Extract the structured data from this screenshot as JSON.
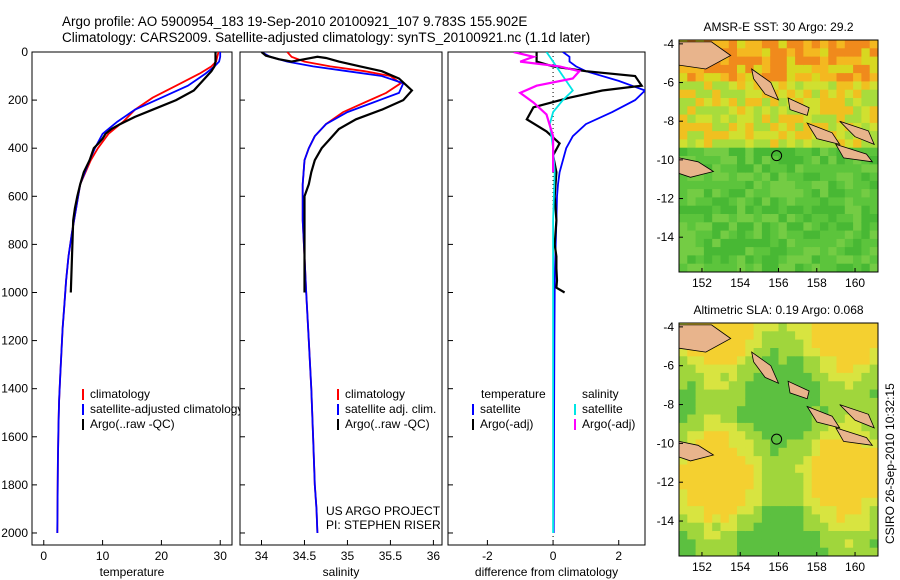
{
  "header": {
    "line1": "Argo profile: AO 5900954_183 19-Sep-2010 20100921_107 9.783S 155.902E",
    "line2": "Climatology: CARS2009. Satellite-adjusted climatology: synTS_20100921.nc (1.1d later)"
  },
  "side_text": "CSIRO 26-Sep-2010 10:32:15",
  "credits": [
    "US ARGO PROJECT",
    "PI: STEPHEN RISER"
  ],
  "colors": {
    "climatology": "#ff0000",
    "satellite": "#0000ff",
    "argo": "#000000",
    "sat_diff_sal": "#00e5e5",
    "argo_diff_sal": "#ff00ff",
    "land": "#e8b48c"
  },
  "chart_data": [
    {
      "id": "temperature",
      "type": "line",
      "xlabel": "temperature",
      "ylabel": "",
      "xlim": [
        -2,
        32
      ],
      "ylim": [
        2050,
        0
      ],
      "xticks": [
        0,
        10,
        20,
        30
      ],
      "yticks": [
        0,
        200,
        400,
        600,
        800,
        1000,
        1200,
        1400,
        1600,
        1800,
        2000
      ],
      "legend": [
        "climatology",
        "satellite-adjusted climatology",
        "Argo(..raw -QC)"
      ],
      "series": [
        {
          "name": "climatology",
          "x": [
            29.7,
            29.5,
            29.3,
            28.5,
            26.5,
            22.5,
            18.5,
            15.5,
            13.5,
            11.0,
            9.2,
            8.0,
            6.2,
            5.5,
            4.8,
            4.2,
            3.8,
            3.5,
            3.2,
            3.0,
            2.8,
            2.6,
            2.5,
            2.4,
            2.35,
            2.3
          ],
          "y": [
            0,
            20,
            40,
            60,
            90,
            140,
            190,
            240,
            290,
            340,
            400,
            450,
            550,
            650,
            750,
            850,
            950,
            1050,
            1150,
            1250,
            1350,
            1450,
            1550,
            1700,
            1850,
            2000
          ]
        },
        {
          "name": "satellite-adjusted climatology",
          "x": [
            30.0,
            30.0,
            29.8,
            29.0,
            27.5,
            24.5,
            20.0,
            15.5,
            12.5,
            10.0,
            8.7,
            7.8,
            6.2,
            5.5,
            4.8,
            4.2,
            3.8,
            3.5,
            3.2,
            3.0,
            2.8,
            2.6,
            2.5,
            2.4,
            2.35,
            2.3
          ],
          "y": [
            0,
            20,
            40,
            60,
            90,
            140,
            190,
            240,
            290,
            340,
            400,
            450,
            550,
            650,
            750,
            850,
            950,
            1050,
            1150,
            1250,
            1350,
            1450,
            1550,
            1700,
            1850,
            2000
          ]
        },
        {
          "name": "Argo(..raw -QC)",
          "x": [
            29.2,
            29.2,
            29.2,
            29.0,
            28.5,
            27.0,
            25.5,
            22.5,
            18.5,
            15.5,
            13.0,
            11.5,
            10.5,
            10.0,
            9.3,
            8.5,
            7.8,
            6.8,
            6.2,
            5.7,
            5.3,
            5.0,
            4.6
          ],
          "y": [
            0,
            20,
            40,
            60,
            80,
            120,
            160,
            200,
            240,
            270,
            300,
            320,
            340,
            360,
            380,
            400,
            450,
            500,
            550,
            600,
            650,
            700,
            1000
          ]
        }
      ]
    },
    {
      "id": "salinity",
      "type": "line",
      "xlabel": "salinity",
      "xlim": [
        33.75,
        36.1
      ],
      "ylim": [
        2050,
        0
      ],
      "xticks": [
        34,
        34.5,
        35,
        35.5,
        36
      ],
      "legend": [
        "climatology",
        "satellite adj. clim.",
        "Argo(..raw -QC)"
      ],
      "series": [
        {
          "name": "climatology",
          "x": [
            34.3,
            34.35,
            34.5,
            34.8,
            35.2,
            35.5,
            35.62,
            35.45,
            35.2,
            34.95,
            34.75,
            34.62,
            34.55,
            34.5,
            34.48,
            34.48,
            34.5,
            34.52,
            34.55,
            34.58,
            34.6,
            34.62,
            34.64,
            34.65
          ],
          "y": [
            0,
            20,
            40,
            60,
            80,
            100,
            130,
            170,
            210,
            250,
            300,
            350,
            400,
            450,
            550,
            700,
            850,
            1000,
            1200,
            1400,
            1600,
            1800,
            1900,
            2000
          ]
        },
        {
          "name": "satellite adj. clim.",
          "x": [
            34.0,
            34.1,
            34.3,
            34.6,
            35.0,
            35.4,
            35.65,
            35.6,
            35.3,
            35.0,
            34.75,
            34.62,
            34.55,
            34.5,
            34.48,
            34.48,
            34.5,
            34.52,
            34.55,
            34.58,
            34.6,
            34.62,
            34.64,
            34.65
          ],
          "y": [
            0,
            20,
            40,
            60,
            80,
            100,
            130,
            170,
            210,
            250,
            300,
            350,
            400,
            450,
            550,
            700,
            850,
            1000,
            1200,
            1400,
            1600,
            1800,
            1900,
            2000
          ]
        },
        {
          "name": "Argo(..raw -QC)",
          "x": [
            34.0,
            34.05,
            34.2,
            34.35,
            34.5,
            34.65,
            34.75,
            34.9,
            35.15,
            35.4,
            35.6,
            35.75,
            35.65,
            35.4,
            35.1,
            34.9,
            34.8,
            34.7,
            34.62,
            34.58,
            34.55,
            34.5,
            34.5
          ],
          "y": [
            0,
            15,
            30,
            40,
            30,
            20,
            25,
            40,
            60,
            80,
            110,
            160,
            200,
            240,
            280,
            320,
            360,
            400,
            450,
            500,
            550,
            600,
            1000
          ]
        }
      ]
    },
    {
      "id": "difference",
      "type": "line",
      "xlabel": "difference from climatology",
      "xlim": [
        -3.2,
        2.8
      ],
      "ylim": [
        2050,
        0
      ],
      "xticks": [
        -2,
        0,
        2
      ],
      "legend_left": [
        "temperature",
        "satellite",
        "Argo(-adj)"
      ],
      "legend_right": [
        "salinity",
        "satellite",
        "Argo(-adj)"
      ],
      "series": [
        {
          "name": "temperature satellite",
          "x": [
            0.3,
            0.5,
            0.5,
            0.7,
            1.0,
            2.0,
            2.8,
            2.5,
            1.8,
            1.0,
            0.6,
            0.4,
            0.3,
            0.2,
            0.15,
            0.12,
            0.1,
            0.08,
            0.06,
            0.05,
            0.04,
            0.03,
            0.02
          ],
          "y": [
            0,
            20,
            40,
            60,
            80,
            120,
            160,
            200,
            250,
            300,
            350,
            400,
            450,
            500,
            550,
            600,
            700,
            800,
            900,
            1000,
            1200,
            1500,
            2000
          ]
        },
        {
          "name": "temperature Argo(-adj)",
          "x": [
            -0.5,
            -0.5,
            -0.5,
            0.0,
            1.0,
            2.5,
            2.7,
            1.5,
            0.5,
            -0.6,
            -0.8,
            -0.2,
            0.2,
            0.0,
            0.1,
            0.05,
            0.1,
            0.05,
            0.1,
            0.1,
            0.12,
            0.1,
            0.35
          ],
          "y": [
            0,
            20,
            40,
            60,
            80,
            100,
            140,
            160,
            190,
            230,
            280,
            330,
            380,
            430,
            500,
            600,
            700,
            800,
            850,
            900,
            950,
            980,
            1000
          ]
        },
        {
          "name": "salinity satellite",
          "x": [
            -0.2,
            -0.1,
            0.0,
            0.2,
            0.4,
            0.6,
            0.3,
            0.0,
            -0.1,
            0.0,
            0.05,
            0.0,
            0.0,
            0.0,
            0.0,
            0.0,
            0.0
          ],
          "y": [
            0,
            20,
            40,
            80,
            120,
            160,
            200,
            250,
            300,
            400,
            500,
            700,
            900,
            1200,
            1500,
            1800,
            2000
          ]
        },
        {
          "name": "salinity Argo(-adj)",
          "x": [
            -1.2,
            -0.6,
            -1.0,
            0.2,
            0.8,
            0.6,
            -0.5,
            -1.0,
            -0.6,
            -0.2,
            0.0,
            0.0
          ],
          "y": [
            0,
            20,
            40,
            60,
            80,
            110,
            140,
            170,
            210,
            260,
            350,
            500
          ]
        }
      ]
    },
    {
      "id": "sst-map",
      "type": "heatmap",
      "title": "AMSR-E SST: 30 Argo: 29.2",
      "xlim": [
        150.8,
        161.2
      ],
      "ylim": [
        -15.8,
        -3.8
      ],
      "xticks": [
        152,
        154,
        156,
        158,
        160
      ],
      "yticks": [
        -4,
        -6,
        -8,
        -10,
        -12,
        -14
      ],
      "argo_position": [
        155.902,
        -9.783
      ]
    },
    {
      "id": "sla-map",
      "type": "heatmap",
      "title": "Altimetric SLA: 0.19 Argo: 0.068",
      "xlim": [
        150.8,
        161.2
      ],
      "ylim": [
        -15.8,
        -3.8
      ],
      "xticks": [
        152,
        154,
        156,
        158,
        160
      ],
      "yticks": [
        -4,
        -6,
        -8,
        -10,
        -12,
        -14
      ],
      "argo_position": [
        155.902,
        -9.783
      ]
    }
  ]
}
